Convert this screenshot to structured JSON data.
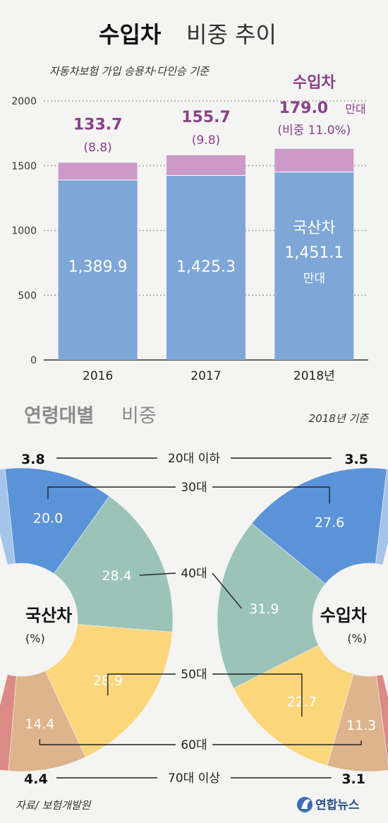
{
  "header": {
    "title_bold": "수입차",
    "title_rest": "비중 추이",
    "subtitle": "자동차보험 가입 승용차·다인승 기준"
  },
  "chart_data": [
    {
      "type": "bar",
      "stacked": true,
      "categories": [
        "2016",
        "2017",
        "2018년"
      ],
      "series": [
        {
          "name": "국산차",
          "values": [
            1389.9,
            1425.3,
            1451.1
          ],
          "labels": [
            "1,389.9",
            "1,425.3",
            "1,451.1"
          ],
          "color": "#7ea7d8"
        },
        {
          "name": "수입차",
          "values": [
            133.7,
            155.7,
            179.0
          ],
          "labels": [
            "133.7",
            "155.7",
            "179.0"
          ],
          "shares": [
            "(8.8)",
            "(9.8)",
            "(비중 11.0%)"
          ],
          "color": "#cc99c9"
        }
      ],
      "unit": "만대",
      "yticks": [
        "0",
        "500",
        "1000",
        "1500",
        "2000"
      ],
      "ylim": [
        0,
        2000
      ],
      "grid": true
    },
    {
      "type": "pie",
      "section_title_bold": "연령대별",
      "section_title_rest": "비중",
      "basis": "2018년 기준",
      "categories": [
        "20대 이하",
        "30대",
        "40대",
        "50대",
        "60대",
        "70대 이상"
      ],
      "colors": [
        "#a4c4ea",
        "#5b93d9",
        "#9cc3b8",
        "#fcd67a",
        "#ddb48c",
        "#dc8a86"
      ],
      "series": [
        {
          "name": "국산차",
          "unit": "(%)",
          "values": [
            3.8,
            20.0,
            28.4,
            28.9,
            14.4,
            4.4
          ],
          "labels": [
            "3.8",
            "20.0",
            "28.4",
            "28.9",
            "14.4",
            "4.4"
          ]
        },
        {
          "name": "수입차",
          "unit": "(%)",
          "values": [
            3.5,
            27.6,
            31.9,
            22.7,
            11.3,
            3.1
          ],
          "labels": [
            "3.5",
            "27.6",
            "31.9",
            "22.7",
            "11.3",
            "3.1"
          ]
        }
      ]
    }
  ],
  "footer": {
    "source": "자료/ 보험개발원",
    "logo": "연합뉴스",
    "logo_icon": "yonhap-swirl-icon"
  }
}
